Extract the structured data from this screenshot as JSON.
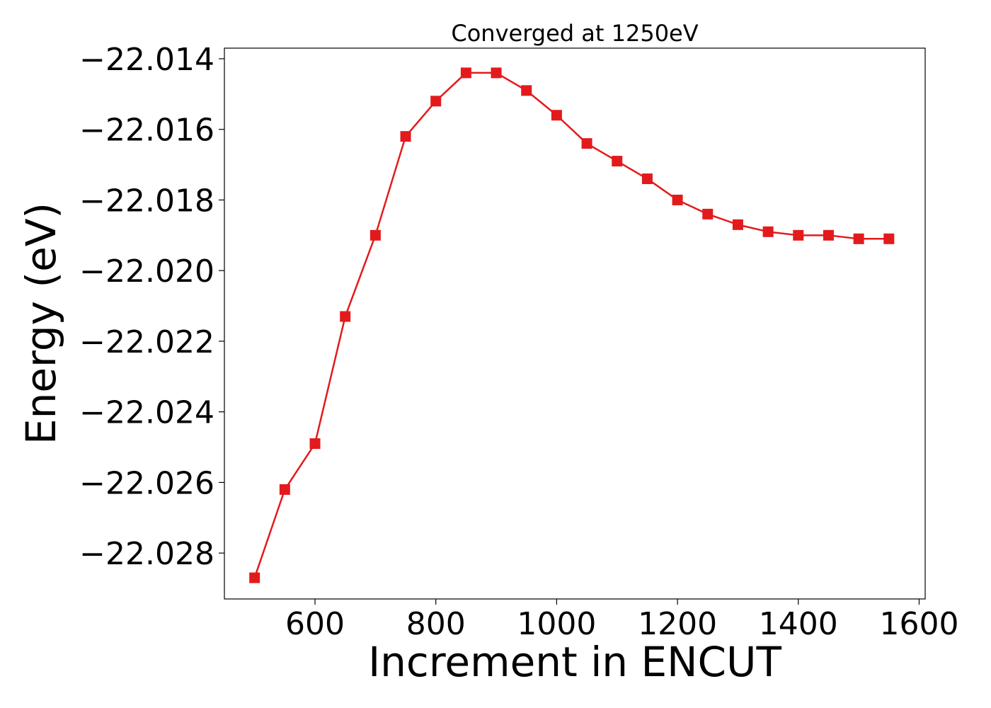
{
  "chart_data": {
    "type": "line",
    "title": "Converged at 1250eV",
    "xlabel": "Increment in ENCUT",
    "ylabel": "Energy (eV)",
    "xlim": [
      450,
      1610
    ],
    "ylim": [
      -22.0293,
      -22.0137
    ],
    "xticks": [
      600,
      800,
      1000,
      1200,
      1400,
      1600
    ],
    "yticks": [
      -22.014,
      -22.016,
      -22.018,
      -22.02,
      -22.022,
      -22.024,
      -22.026,
      -22.028
    ],
    "ytick_labels": [
      "−22.014",
      "−22.016",
      "−22.018",
      "−22.020",
      "−22.022",
      "−22.024",
      "−22.026",
      "−22.028"
    ],
    "grid": false,
    "legend": "none",
    "series": [
      {
        "color": "#e31a1c",
        "marker": "square",
        "x": [
          500,
          550,
          600,
          650,
          700,
          750,
          800,
          850,
          900,
          950,
          1000,
          1050,
          1100,
          1150,
          1200,
          1250,
          1300,
          1350,
          1400,
          1450,
          1500,
          1550
        ],
        "y": [
          -22.0287,
          -22.0262,
          -22.0249,
          -22.0213,
          -22.019,
          -22.0162,
          -22.0152,
          -22.0144,
          -22.0144,
          -22.0149,
          -22.0156,
          -22.0164,
          -22.0169,
          -22.0174,
          -22.018,
          -22.0184,
          -22.0187,
          -22.0189,
          -22.019,
          -22.019,
          -22.0191,
          -22.0191
        ]
      }
    ]
  }
}
